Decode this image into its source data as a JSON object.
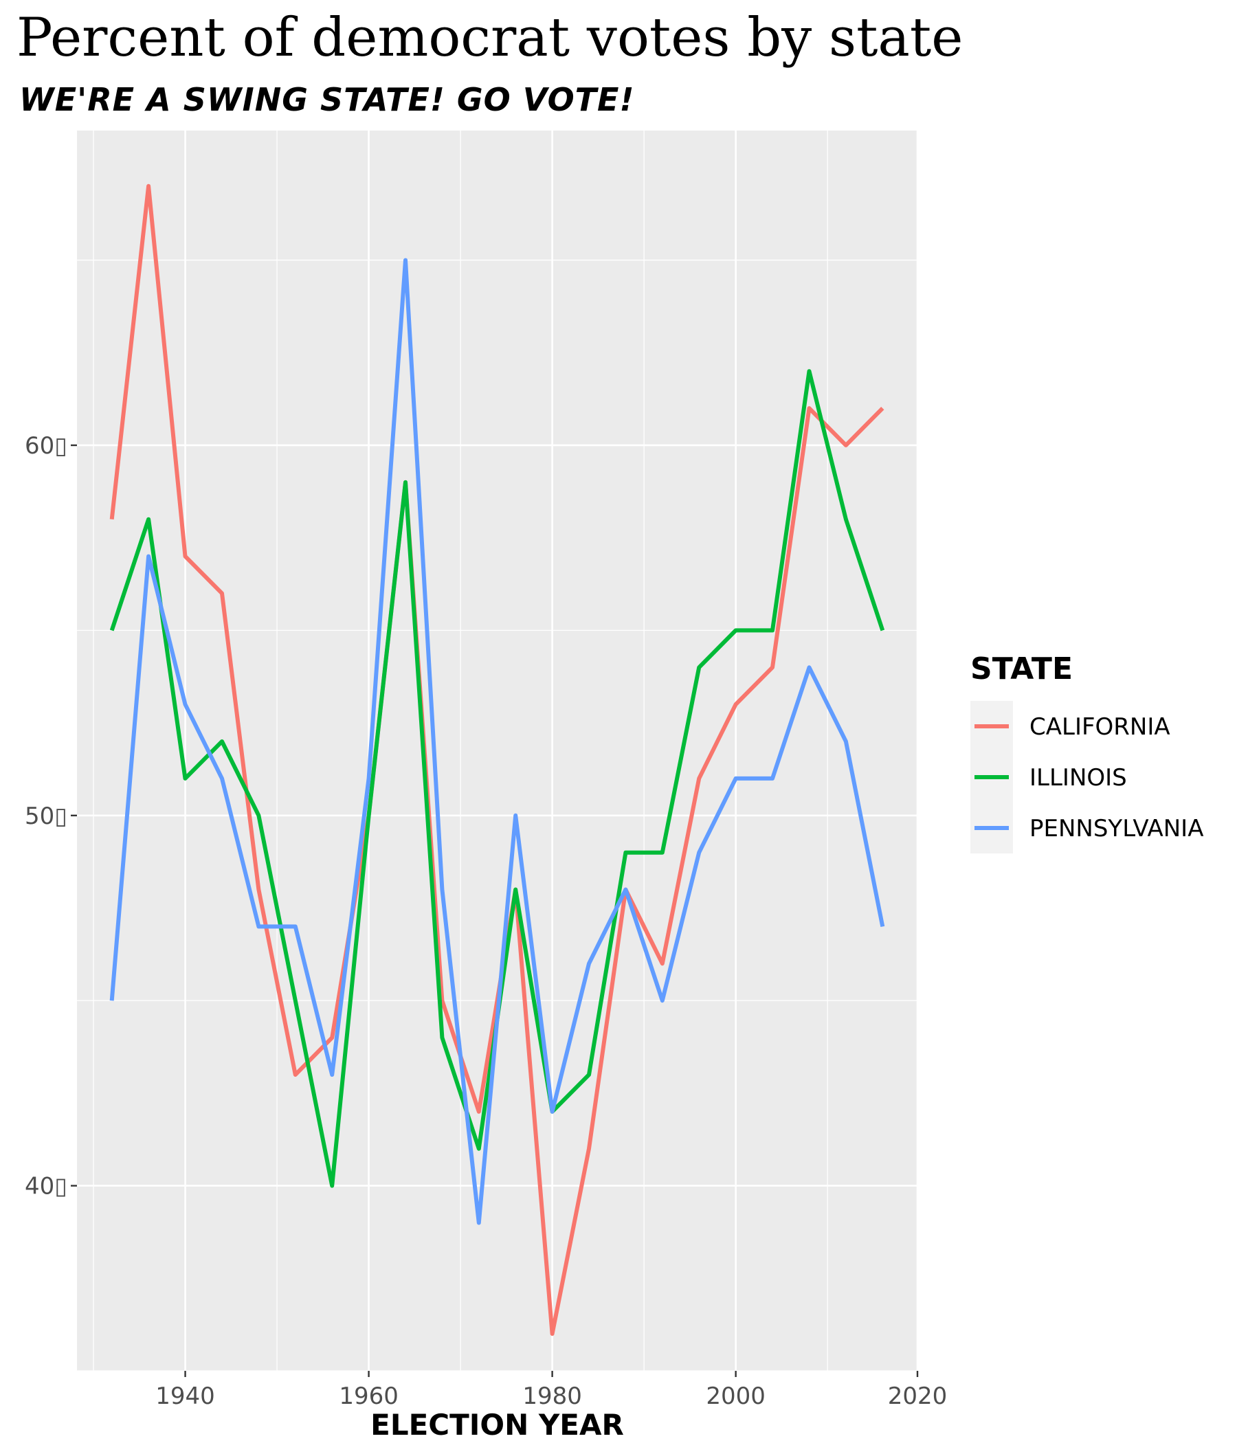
{
  "chart_data": {
    "type": "line",
    "title": "Percent of democrat votes by state",
    "subtitle": "WE'RE A SWING STATE! GO VOTE!",
    "xlabel": "ELECTION YEAR",
    "ylabel": "",
    "x": [
      1932,
      1936,
      1940,
      1944,
      1948,
      1952,
      1956,
      1960,
      1964,
      1968,
      1972,
      1976,
      1980,
      1984,
      1988,
      1992,
      1996,
      2000,
      2004,
      2008,
      2012,
      2016
    ],
    "series": [
      {
        "name": "CALIFORNIA",
        "color": "#F8766D",
        "values": [
          58,
          67,
          57,
          56,
          48,
          43,
          44,
          50,
          59,
          45,
          42,
          48,
          36,
          41,
          48,
          46,
          51,
          53,
          54,
          61,
          60,
          61
        ]
      },
      {
        "name": "ILLINOIS",
        "color": "#00BA38",
        "values": [
          55,
          58,
          51,
          52,
          50,
          45,
          40,
          50,
          59,
          44,
          41,
          48,
          42,
          43,
          49,
          49,
          54,
          55,
          55,
          62,
          58,
          55
        ]
      },
      {
        "name": "PENNSYLVANIA",
        "color": "#619CFF",
        "values": [
          45,
          57,
          53,
          51,
          47,
          47,
          43,
          51,
          65,
          48,
          39,
          50,
          42,
          46,
          48,
          45,
          49,
          51,
          51,
          54,
          52,
          47
        ]
      }
    ],
    "xlim": [
      1928.2,
      2019.8
    ],
    "ylim": [
      35,
      68.5
    ],
    "x_ticks": [
      1940,
      1960,
      1980,
      2000,
      2020
    ],
    "x_tick_labels": [
      "1940",
      "1960",
      "1980",
      "2000",
      "2020"
    ],
    "y_ticks": [
      40,
      50,
      60
    ],
    "y_tick_labels": [
      "40▯",
      "50▯",
      "60▯"
    ],
    "legend": {
      "title": "STATE",
      "placement": "right"
    },
    "grid": true,
    "panel_background": "#EBEBEB",
    "legend_key_background": "#F2F2F2"
  }
}
